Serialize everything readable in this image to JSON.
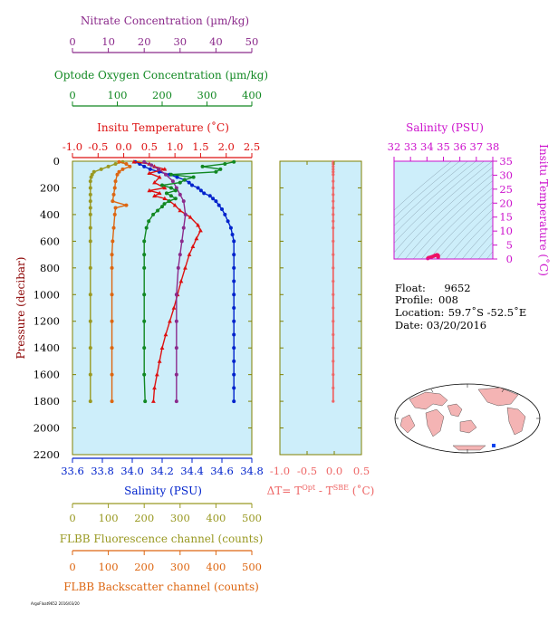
{
  "colors": {
    "panel_bg": "#cdeefa",
    "frame": "#808000",
    "nitrate": "#8b2a8b",
    "oxygen": "#118822",
    "temperature": "#dd1111",
    "salinity": "#0022cc",
    "fluorescence": "#999922",
    "backscatter": "#dd6611",
    "delta_t": "#ee6666",
    "ts_axis": "#cc11cc",
    "ts_points": "#ee1166"
  },
  "info": {
    "float_label": "Float:",
    "float_value": "9652",
    "profile_label": "Profile:",
    "profile_value": "008",
    "location_label": "Location:",
    "location_value": "59.7˚S  -52.5˚E",
    "date_label": "Date:",
    "date_value": "03/20/2016"
  },
  "footer_stamp": "ArgoFloat9652 2016/03/20",
  "chart_data": [
    {
      "id": "main-profile",
      "type": "line",
      "y_axis": {
        "label": "Pressure (decibar)",
        "range": [
          2200,
          0
        ],
        "ticks": [
          0,
          200,
          400,
          600,
          800,
          1000,
          1200,
          1400,
          1600,
          1800,
          2000,
          2200
        ],
        "inverted": true
      },
      "axes": {
        "nitrate": {
          "label": "Nitrate Concentration (µm/kg)",
          "range": [
            0,
            50
          ],
          "ticks": [
            0,
            10,
            20,
            30,
            40,
            50
          ],
          "position": "top"
        },
        "oxygen": {
          "label": "Optode Oxygen Concentration (µm/kg)",
          "range": [
            0,
            400
          ],
          "ticks": [
            0,
            100,
            200,
            300,
            400
          ],
          "position": "top"
        },
        "temperature": {
          "label": "Insitu Temperature (˚C)",
          "range": [
            -1.0,
            2.5
          ],
          "ticks": [
            "-1.0",
            "-0.5",
            "0.0",
            "0.5",
            "1.0",
            "1.5",
            "2.0",
            "2.5"
          ],
          "position": "top"
        },
        "salinity": {
          "label": "Salinity (PSU)",
          "range": [
            33.6,
            34.8
          ],
          "ticks": [
            "33.6",
            "33.8",
            "34.0",
            "34.2",
            "34.4",
            "34.6",
            "34.8"
          ],
          "position": "bottom"
        },
        "fluorescence": {
          "label": "FLBB Fluorescence channel (counts)",
          "range": [
            0,
            500
          ],
          "ticks": [
            0,
            100,
            200,
            300,
            400,
            500
          ],
          "position": "bottom"
        },
        "backscatter": {
          "label": "FLBB Backscatter channel (counts)",
          "range": [
            0,
            500
          ],
          "ticks": [
            0,
            100,
            200,
            300,
            400,
            500
          ],
          "position": "bottom"
        }
      },
      "grid": false,
      "series": [
        {
          "key": "salinity",
          "marker": "circle",
          "points": [
            [
              34.02,
              5
            ],
            [
              34.05,
              20
            ],
            [
              34.08,
              40
            ],
            [
              34.12,
              60
            ],
            [
              34.18,
              80
            ],
            [
              34.25,
              100
            ],
            [
              34.3,
              120
            ],
            [
              34.35,
              140
            ],
            [
              34.38,
              160
            ],
            [
              34.4,
              180
            ],
            [
              34.44,
              200
            ],
            [
              34.46,
              220
            ],
            [
              34.48,
              240
            ],
            [
              34.52,
              260
            ],
            [
              34.54,
              280
            ],
            [
              34.56,
              300
            ],
            [
              34.58,
              330
            ],
            [
              34.6,
              360
            ],
            [
              34.62,
              400
            ],
            [
              34.64,
              450
            ],
            [
              34.66,
              500
            ],
            [
              34.67,
              550
            ],
            [
              34.68,
              600
            ],
            [
              34.68,
              700
            ],
            [
              34.68,
              800
            ],
            [
              34.68,
              900
            ],
            [
              34.68,
              1000
            ],
            [
              34.68,
              1100
            ],
            [
              34.68,
              1200
            ],
            [
              34.68,
              1300
            ],
            [
              34.68,
              1400
            ],
            [
              34.68,
              1500
            ],
            [
              34.68,
              1600
            ],
            [
              34.68,
              1700
            ],
            [
              34.68,
              1800
            ]
          ]
        },
        {
          "key": "temperature",
          "marker": "triangle",
          "points": [
            [
              0.2,
              5
            ],
            [
              0.5,
              20
            ],
            [
              0.6,
              40
            ],
            [
              0.8,
              60
            ],
            [
              0.5,
              90
            ],
            [
              0.7,
              120
            ],
            [
              0.6,
              160
            ],
            [
              0.8,
              200
            ],
            [
              0.5,
              220
            ],
            [
              0.7,
              240
            ],
            [
              0.6,
              260
            ],
            [
              0.8,
              280
            ],
            [
              0.9,
              300
            ],
            [
              1.0,
              330
            ],
            [
              1.1,
              370
            ],
            [
              1.3,
              420
            ],
            [
              1.45,
              480
            ],
            [
              1.5,
              520
            ],
            [
              1.42,
              580
            ],
            [
              1.35,
              640
            ],
            [
              1.28,
              700
            ],
            [
              1.2,
              800
            ],
            [
              1.12,
              900
            ],
            [
              1.05,
              1000
            ],
            [
              0.98,
              1100
            ],
            [
              0.9,
              1200
            ],
            [
              0.82,
              1300
            ],
            [
              0.75,
              1400
            ],
            [
              0.7,
              1500
            ],
            [
              0.65,
              1600
            ],
            [
              0.6,
              1700
            ],
            [
              0.58,
              1800
            ]
          ]
        },
        {
          "key": "nitrate",
          "marker": "circle",
          "points": [
            [
              20,
              5
            ],
            [
              22,
              30
            ],
            [
              24,
              60
            ],
            [
              26,
              100
            ],
            [
              28,
              150
            ],
            [
              29,
              200
            ],
            [
              30,
              250
            ],
            [
              31,
              300
            ],
            [
              31.5,
              400
            ],
            [
              31,
              500
            ],
            [
              30.5,
              600
            ],
            [
              30,
              700
            ],
            [
              29.5,
              800
            ],
            [
              29,
              1000
            ],
            [
              29,
              1200
            ],
            [
              29,
              1400
            ],
            [
              29,
              1600
            ],
            [
              29,
              1800
            ]
          ]
        },
        {
          "key": "oxygen",
          "marker": "circle",
          "points": [
            [
              360,
              5
            ],
            [
              340,
              20
            ],
            [
              290,
              40
            ],
            [
              330,
              60
            ],
            [
              320,
              80
            ],
            [
              220,
              100
            ],
            [
              270,
              120
            ],
            [
              250,
              140
            ],
            [
              240,
              160
            ],
            [
              200,
              180
            ],
            [
              220,
              200
            ],
            [
              230,
              220
            ],
            [
              210,
              240
            ],
            [
              220,
              260
            ],
            [
              230,
              280
            ],
            [
              215,
              300
            ],
            [
              205,
              320
            ],
            [
              200,
              340
            ],
            [
              190,
              370
            ],
            [
              180,
              400
            ],
            [
              170,
              450
            ],
            [
              165,
              500
            ],
            [
              160,
              600
            ],
            [
              160,
              700
            ],
            [
              160,
              800
            ],
            [
              160,
              1000
            ],
            [
              160,
              1200
            ],
            [
              160,
              1400
            ],
            [
              160,
              1600
            ],
            [
              162,
              1800
            ]
          ]
        },
        {
          "key": "fluorescence",
          "marker": "circle",
          "points": [
            [
              140,
              5
            ],
            [
              120,
              20
            ],
            [
              100,
              40
            ],
            [
              80,
              60
            ],
            [
              60,
              80
            ],
            [
              55,
              100
            ],
            [
              52,
              120
            ],
            [
              50,
              150
            ],
            [
              50,
              200
            ],
            [
              50,
              250
            ],
            [
              50,
              300
            ],
            [
              50,
              350
            ],
            [
              50,
              400
            ],
            [
              50,
              500
            ],
            [
              50,
              600
            ],
            [
              50,
              800
            ],
            [
              50,
              1000
            ],
            [
              50,
              1200
            ],
            [
              50,
              1400
            ],
            [
              50,
              1600
            ],
            [
              50,
              1800
            ]
          ]
        },
        {
          "key": "backscatter",
          "marker": "circle",
          "points": [
            [
              130,
              5
            ],
            [
              150,
              20
            ],
            [
              160,
              40
            ],
            [
              140,
              60
            ],
            [
              130,
              80
            ],
            [
              125,
              100
            ],
            [
              120,
              150
            ],
            [
              118,
              200
            ],
            [
              115,
              250
            ],
            [
              112,
              300
            ],
            [
              150,
              330
            ],
            [
              120,
              350
            ],
            [
              118,
              400
            ],
            [
              115,
              500
            ],
            [
              112,
              600
            ],
            [
              110,
              700
            ],
            [
              110,
              800
            ],
            [
              110,
              1000
            ],
            [
              110,
              1200
            ],
            [
              110,
              1400
            ],
            [
              110,
              1600
            ],
            [
              110,
              1800
            ]
          ]
        }
      ]
    },
    {
      "id": "delta-t",
      "type": "line",
      "x_axis": {
        "label": "ΔT= T",
        "label_sup1": "Opt",
        "label_mid": " - T",
        "label_sup2": "SBE",
        "label_end": " (˚C)",
        "range": [
          -1.0,
          0.5
        ],
        "ticks": [
          "-1.0",
          "-0.5",
          "0.0",
          "0.5"
        ]
      },
      "y_axis": {
        "range": [
          2200,
          0
        ],
        "inverted": true
      },
      "series": [
        {
          "key": "delta_t",
          "points": [
            [
              -0.02,
              5
            ],
            [
              -0.02,
              20
            ],
            [
              -0.02,
              40
            ],
            [
              -0.02,
              60
            ],
            [
              -0.02,
              80
            ],
            [
              -0.02,
              100
            ],
            [
              -0.02,
              150
            ],
            [
              -0.02,
              200
            ],
            [
              -0.02,
              250
            ],
            [
              -0.02,
              300
            ],
            [
              -0.02,
              350
            ],
            [
              -0.02,
              400
            ],
            [
              -0.02,
              450
            ],
            [
              -0.02,
              500
            ],
            [
              -0.02,
              600
            ],
            [
              -0.02,
              700
            ],
            [
              -0.02,
              800
            ],
            [
              -0.02,
              900
            ],
            [
              -0.02,
              1000
            ],
            [
              -0.02,
              1100
            ],
            [
              -0.02,
              1200
            ],
            [
              -0.02,
              1300
            ],
            [
              -0.02,
              1400
            ],
            [
              -0.02,
              1500
            ],
            [
              -0.02,
              1600
            ],
            [
              -0.02,
              1700
            ],
            [
              -0.02,
              1800
            ]
          ]
        }
      ]
    },
    {
      "id": "ts-diagram",
      "type": "scatter",
      "x_axis": {
        "label": "Salinity (PSU)",
        "range": [
          32,
          38
        ],
        "ticks": [
          32,
          33,
          34,
          35,
          36,
          37,
          38
        ],
        "position": "top"
      },
      "y_axis": {
        "label": "Insitu Temperature (˚C)",
        "range": [
          0,
          35
        ],
        "ticks": [
          0,
          5,
          10,
          15,
          20,
          25,
          30,
          35
        ],
        "position": "right"
      },
      "series": [
        {
          "key": "ts",
          "points": [
            [
              34.05,
              0.2
            ],
            [
              34.1,
              0.5
            ],
            [
              34.2,
              0.6
            ],
            [
              34.3,
              0.8
            ],
            [
              34.4,
              1.0
            ],
            [
              34.5,
              1.3
            ],
            [
              34.6,
              1.5
            ],
            [
              34.65,
              1.4
            ],
            [
              34.68,
              1.2
            ],
            [
              34.68,
              1.0
            ],
            [
              34.68,
              0.8
            ],
            [
              34.68,
              0.6
            ]
          ]
        }
      ]
    }
  ]
}
